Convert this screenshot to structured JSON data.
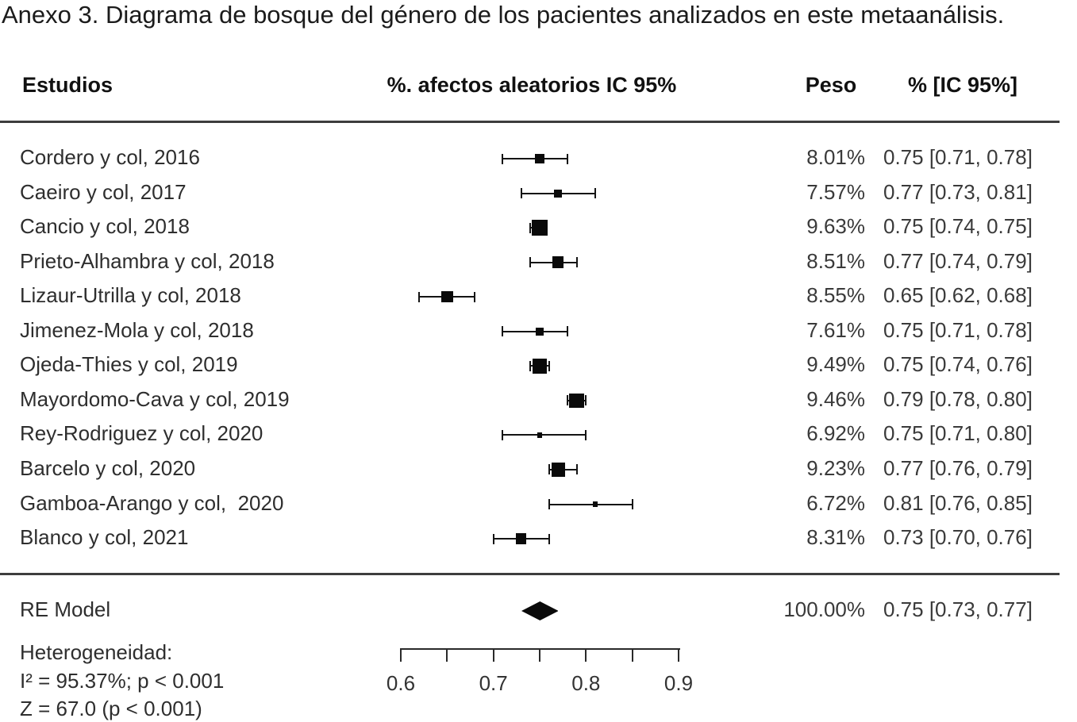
{
  "title": "Anexo 3. Diagrama de bosque del género de los pacientes analizados en este metaanálisis.",
  "columns": {
    "studies": "Estudios",
    "plot": "%. afectos aleatorios IC 95%",
    "weight": "Peso",
    "estimate": "% [IC 95%]"
  },
  "chart_data": {
    "type": "forest",
    "xlim": [
      0.6,
      0.9
    ],
    "axis": {
      "major_ticks": [
        "0.6",
        "0.7",
        "0.8",
        "0.9"
      ],
      "minor_ticks": [
        0.65,
        0.75,
        0.85
      ]
    },
    "studies": [
      {
        "name": "Cordero y col, 2016",
        "weight_label": "8.01%",
        "weight": 8.01,
        "estimate": 0.75,
        "ci_low": 0.71,
        "ci_high": 0.78,
        "estimate_label": "0.75 [0.71, 0.78]"
      },
      {
        "name": "Caeiro y col, 2017",
        "weight_label": "7.57%",
        "weight": 7.57,
        "estimate": 0.77,
        "ci_low": 0.73,
        "ci_high": 0.81,
        "estimate_label": "0.77 [0.73, 0.81]"
      },
      {
        "name": "Cancio y col, 2018",
        "weight_label": "9.63%",
        "weight": 9.63,
        "estimate": 0.75,
        "ci_low": 0.74,
        "ci_high": 0.75,
        "estimate_label": "0.75 [0.74, 0.75]"
      },
      {
        "name": "Prieto-Alhambra y col, 2018",
        "weight_label": "8.51%",
        "weight": 8.51,
        "estimate": 0.77,
        "ci_low": 0.74,
        "ci_high": 0.79,
        "estimate_label": "0.77 [0.74, 0.79]"
      },
      {
        "name": "Lizaur-Utrilla y col, 2018",
        "weight_label": "8.55%",
        "weight": 8.55,
        "estimate": 0.65,
        "ci_low": 0.62,
        "ci_high": 0.68,
        "estimate_label": "0.65 [0.62, 0.68]"
      },
      {
        "name": "Jimenez-Mola y col, 2018",
        "weight_label": "7.61%",
        "weight": 7.61,
        "estimate": 0.75,
        "ci_low": 0.71,
        "ci_high": 0.78,
        "estimate_label": "0.75 [0.71, 0.78]"
      },
      {
        "name": "Ojeda-Thies y col, 2019",
        "weight_label": "9.49%",
        "weight": 9.49,
        "estimate": 0.75,
        "ci_low": 0.74,
        "ci_high": 0.76,
        "estimate_label": "0.75 [0.74, 0.76]"
      },
      {
        "name": "Mayordomo-Cava y col, 2019",
        "weight_label": "9.46%",
        "weight": 9.46,
        "estimate": 0.79,
        "ci_low": 0.78,
        "ci_high": 0.8,
        "estimate_label": "0.79 [0.78, 0.80]"
      },
      {
        "name": "Rey-Rodriguez y col, 2020",
        "weight_label": "6.92%",
        "weight": 6.92,
        "estimate": 0.75,
        "ci_low": 0.71,
        "ci_high": 0.8,
        "estimate_label": "0.75 [0.71, 0.80]"
      },
      {
        "name": "Barcelo y col, 2020",
        "weight_label": "9.23%",
        "weight": 9.23,
        "estimate": 0.77,
        "ci_low": 0.76,
        "ci_high": 0.79,
        "estimate_label": "0.77 [0.76, 0.79]"
      },
      {
        "name": "Gamboa-Arango y col,  2020",
        "weight_label": "6.72%",
        "weight": 6.72,
        "estimate": 0.81,
        "ci_low": 0.76,
        "ci_high": 0.85,
        "estimate_label": "0.81 [0.76, 0.85]"
      },
      {
        "name": "Blanco y col, 2021",
        "weight_label": "8.31%",
        "weight": 8.31,
        "estimate": 0.73,
        "ci_low": 0.7,
        "ci_high": 0.76,
        "estimate_label": "0.73 [0.70, 0.76]"
      }
    ],
    "summary": {
      "name": "RE Model",
      "weight_label": "100.00%",
      "estimate": 0.75,
      "ci_low": 0.73,
      "ci_high": 0.77,
      "estimate_label": "0.75 [0.73, 0.77]"
    },
    "heterogeneity": [
      "Heterogeneidad:",
      "I² = 95.37%; p < 0.001",
      "Z = 67.0 (p < 0.001)"
    ],
    "colors": {
      "marker": "#0a0a0a",
      "line": "#3d3d3d",
      "text": "#2e2e2e"
    }
  }
}
